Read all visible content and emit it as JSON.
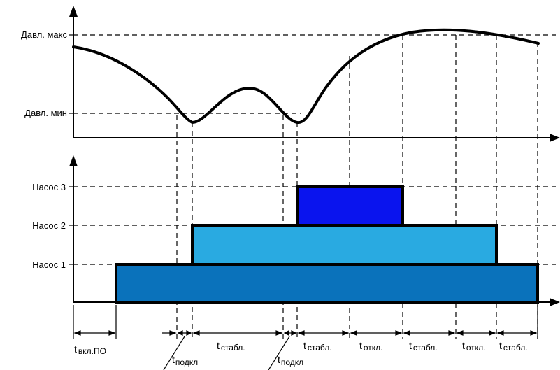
{
  "labels": {
    "pressure_max": "Давл. макс",
    "pressure_min": "Давл. мин",
    "pump_3": "Насос 3",
    "pump_2": "Насос 2",
    "pump_1": "Насос 1"
  },
  "intervals": [
    {
      "t": "t",
      "sub": "вкл.ПО"
    },
    {
      "t": "t",
      "sub": "стабл."
    },
    {
      "t": "t",
      "sub": "стабл."
    },
    {
      "t": "t",
      "sub": "откл."
    },
    {
      "t": "t",
      "sub": "стабл."
    },
    {
      "t": "t",
      "sub": "откл."
    },
    {
      "t": "t",
      "sub": "стабл."
    }
  ],
  "callouts": [
    {
      "t": "t",
      "sub": "подкл"
    },
    {
      "t": "t",
      "sub": "подкл"
    }
  ],
  "colors": {
    "pump_1": "#0a72bb",
    "pump_2": "#29aae1",
    "pump_3": "#0a14ee",
    "curve": "#000000"
  }
}
